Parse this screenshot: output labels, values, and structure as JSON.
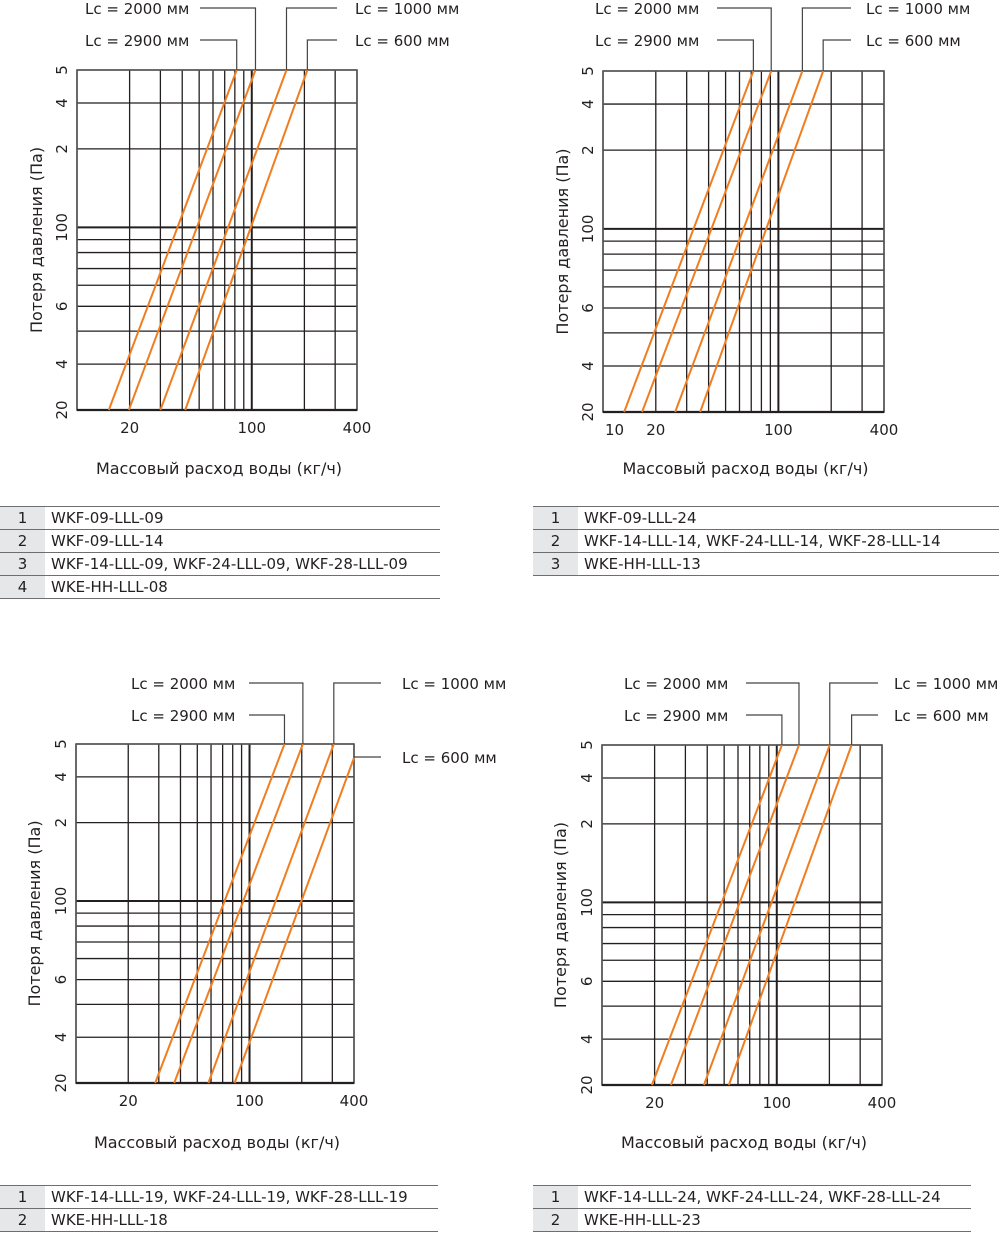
{
  "chart_data": [
    {
      "type": "line",
      "title": "",
      "xlabel": "Массовый расход воды (кг/ч)",
      "ylabel": "Потеря давления (Па)",
      "xscale": "log",
      "xlim": [
        10,
        400
      ],
      "ylim": [
        20,
        500
      ],
      "x_tick_labels": [
        {
          "value": 20,
          "label": "20"
        },
        {
          "value": 100,
          "label": "100"
        },
        {
          "value": 400,
          "label": "400"
        }
      ],
      "y_tick_labels": [
        {
          "value": 20,
          "label": "20"
        },
        {
          "value": 40,
          "label": "4"
        },
        {
          "value": 60,
          "label": "6"
        },
        {
          "value": 100,
          "label": "100"
        },
        {
          "value": 200,
          "label": "2"
        },
        {
          "value": 400,
          "label": "4"
        },
        {
          "value": 500,
          "label": "5"
        }
      ],
      "grid": true,
      "series": [
        {
          "name": "Lc = 2900 мм",
          "points": [
            [
              15.2,
              20
            ],
            [
              82,
              500
            ]
          ]
        },
        {
          "name": "Lc = 2000 мм",
          "points": [
            [
              19.8,
              20
            ],
            [
              105,
              500
            ]
          ]
        },
        {
          "name": "Lc = 1000 мм",
          "points": [
            [
              30,
              20
            ],
            [
              158,
              500
            ]
          ]
        },
        {
          "name": "Lc = 600 мм",
          "points": [
            [
              41.6,
              20
            ],
            [
              208,
              500
            ]
          ]
        }
      ],
      "legend": {
        "position": "top",
        "items": [
          "Lc = 2000 мм",
          "Lc = 2900 мм",
          "Lc = 1000 мм",
          "Lc = 600 мм"
        ]
      },
      "table": [
        {
          "num": "1",
          "models": "WKF-09-LLL-09"
        },
        {
          "num": "2",
          "models": "WKF-09-LLL-14"
        },
        {
          "num": "3",
          "models": "WKF-14-LLL-09, WKF-24-LLL-09, WKF-28-LLL-09"
        },
        {
          "num": "4",
          "models": "WKE-HH-LLL-08"
        }
      ]
    },
    {
      "type": "line",
      "title": "",
      "xlabel": "Массовый расход воды (кг/ч)",
      "ylabel": "Потеря давления (Па)",
      "xscale": "log",
      "xlim": [
        10,
        400
      ],
      "ylim": [
        20,
        500
      ],
      "x_tick_labels": [
        {
          "value": 10,
          "label": "10"
        },
        {
          "value": 20,
          "label": "20"
        },
        {
          "value": 100,
          "label": "100"
        },
        {
          "value": 400,
          "label": "400"
        }
      ],
      "y_tick_labels": [
        {
          "value": 20,
          "label": "20"
        },
        {
          "value": 40,
          "label": "4"
        },
        {
          "value": 60,
          "label": "6"
        },
        {
          "value": 100,
          "label": "100"
        },
        {
          "value": 200,
          "label": "2"
        },
        {
          "value": 400,
          "label": "4"
        },
        {
          "value": 500,
          "label": "5"
        }
      ],
      "grid": true,
      "series": [
        {
          "name": "Lc = 2900 мм",
          "points": [
            [
              13.2,
              20
            ],
            [
              72,
              500
            ]
          ]
        },
        {
          "name": "Lc = 2000 мм",
          "points": [
            [
              16.7,
              20
            ],
            [
              91,
              500
            ]
          ]
        },
        {
          "name": "Lc = 1000 мм",
          "points": [
            [
              25.8,
              20
            ],
            [
              137,
              500
            ]
          ]
        },
        {
          "name": "Lc = 600 мм",
          "points": [
            [
              35.8,
              20
            ],
            [
              180,
              500
            ]
          ]
        }
      ],
      "legend": {
        "position": "top",
        "items": [
          "Lc = 2000 мм",
          "Lc = 2900 мм",
          "Lc = 1000 мм",
          "Lc = 600 мм"
        ]
      },
      "table": [
        {
          "num": "1",
          "models": "WKF-09-LLL-24"
        },
        {
          "num": "2",
          "models": "WKF-14-LLL-14, WKF-24-LLL-14, WKF-28-LLL-14"
        },
        {
          "num": "3",
          "models": "WKE-HH-LLL-13"
        }
      ]
    },
    {
      "type": "line",
      "title": "",
      "xlabel": "Массовый расход воды (кг/ч)",
      "ylabel": "Потеря давления (Па)",
      "xscale": "log",
      "xlim": [
        10,
        400
      ],
      "ylim": [
        20,
        500
      ],
      "x_tick_labels": [
        {
          "value": 20,
          "label": "20"
        },
        {
          "value": 100,
          "label": "100"
        },
        {
          "value": 400,
          "label": "400"
        }
      ],
      "y_tick_labels": [
        {
          "value": 20,
          "label": "20"
        },
        {
          "value": 40,
          "label": "4"
        },
        {
          "value": 60,
          "label": "6"
        },
        {
          "value": 100,
          "label": "100"
        },
        {
          "value": 200,
          "label": "2"
        },
        {
          "value": 400,
          "label": "4"
        },
        {
          "value": 500,
          "label": "5"
        }
      ],
      "grid": true,
      "series": [
        {
          "name": "Lc = 2900 мм",
          "points": [
            [
              28.6,
              20
            ],
            [
              159,
              500
            ]
          ]
        },
        {
          "name": "Lc = 2000 мм",
          "points": [
            [
              36.8,
              20
            ],
            [
              203,
              500
            ]
          ]
        },
        {
          "name": "Lc = 1000 мм",
          "points": [
            [
              57.9,
              20
            ],
            [
              306,
              500
            ]
          ]
        },
        {
          "name": "Lc = 600 мм",
          "points": [
            [
              82,
              20
            ],
            [
              400,
              455
            ]
          ]
        }
      ],
      "legend": {
        "position": "top",
        "items": [
          "Lc = 2000 мм",
          "Lc = 2900 мм",
          "Lc = 1000 мм",
          "Lc = 600 мм"
        ]
      },
      "table": [
        {
          "num": "1",
          "models": "WKF-14-LLL-19, WKF-24-LLL-19, WKF-28-LLL-19"
        },
        {
          "num": "2",
          "models": "WKE-HH-LLL-18"
        }
      ]
    },
    {
      "type": "line",
      "title": "",
      "xlabel": "Массовый расход воды (кг/ч)",
      "ylabel": "Потеря давления (Па)",
      "xscale": "log",
      "xlim": [
        10,
        400
      ],
      "ylim": [
        20,
        500
      ],
      "x_tick_labels": [
        {
          "value": 20,
          "label": "20"
        },
        {
          "value": 100,
          "label": "100"
        },
        {
          "value": 400,
          "label": "400"
        }
      ],
      "y_tick_labels": [
        {
          "value": 20,
          "label": "20"
        },
        {
          "value": 40,
          "label": "4"
        },
        {
          "value": 60,
          "label": "6"
        },
        {
          "value": 100,
          "label": "100"
        },
        {
          "value": 200,
          "label": "2"
        },
        {
          "value": 400,
          "label": "4"
        },
        {
          "value": 500,
          "label": "5"
        }
      ],
      "grid": true,
      "series": [
        {
          "name": "Lc = 2900 мм",
          "points": [
            [
              19.3,
              20
            ],
            [
              107,
              500
            ]
          ]
        },
        {
          "name": "Lc = 2000 мм",
          "points": [
            [
              24.8,
              20
            ],
            [
              134,
              500
            ]
          ]
        },
        {
          "name": "Lc = 1000 мм",
          "points": [
            [
              38.3,
              20
            ],
            [
              201,
              500
            ]
          ]
        },
        {
          "name": "Lc = 600 мм",
          "points": [
            [
              53.2,
              20
            ],
            [
              268,
              500
            ]
          ]
        }
      ],
      "legend": {
        "position": "top",
        "items": [
          "Lc = 2000 мм",
          "Lc = 2900 мм",
          "Lc = 1000 мм",
          "Lc = 600 мм"
        ]
      },
      "table": [
        {
          "num": "1",
          "models": "WKF-14-LLL-24, WKF-24-LLL-24, WKF-28-LLL-24"
        },
        {
          "num": "2",
          "models": "WKE-HH-LLL-23"
        }
      ]
    }
  ],
  "style": {
    "curve_color": "#f07d20",
    "grid_color": "#231f20",
    "table_num_bg": "#e6e7e8"
  }
}
